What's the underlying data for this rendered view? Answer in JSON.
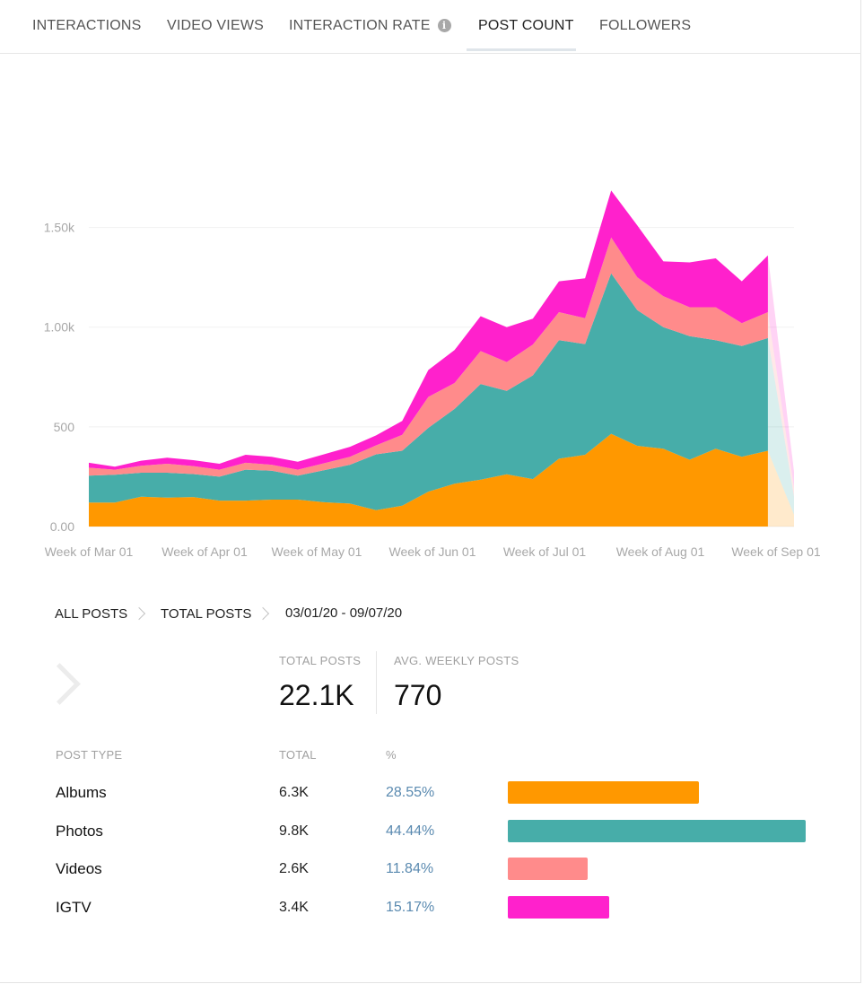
{
  "tabs": [
    {
      "label": "INTERACTIONS",
      "active": false
    },
    {
      "label": "VIDEO VIEWS",
      "active": false
    },
    {
      "label": "INTERACTION RATE",
      "active": false,
      "info_icon": "info-icon"
    },
    {
      "label": "POST COUNT",
      "active": true
    },
    {
      "label": "FOLLOWERS",
      "active": false
    }
  ],
  "chart_data": {
    "type": "area",
    "stacked": true,
    "x_tick_labels": [
      "Week of Mar 01",
      "Week of Apr 01",
      "Week of May 01",
      "Week of Jun 01",
      "Week of Jul 01",
      "Week of Aug 01",
      "Week of Sep 01"
    ],
    "y_tick_labels": [
      "0.00",
      "500",
      "1.00k",
      "1.50k"
    ],
    "ylim": [
      0,
      1750
    ],
    "y_ticks": [
      0,
      500,
      1000,
      1500
    ],
    "grid": true,
    "legend": "none",
    "last_point_partial": true,
    "series": [
      {
        "key": "albums",
        "color": "#ff9800",
        "values": [
          120,
          120,
          150,
          145,
          148,
          130,
          130,
          135,
          135,
          122,
          115,
          82,
          105,
          175,
          215,
          235,
          262,
          238,
          340,
          360,
          465,
          405,
          390,
          335,
          390,
          350,
          380,
          60
        ]
      },
      {
        "key": "photos",
        "color": "#47ada9",
        "values": [
          135,
          140,
          120,
          125,
          115,
          120,
          155,
          145,
          120,
          160,
          195,
          280,
          275,
          320,
          375,
          480,
          418,
          520,
          595,
          555,
          805,
          680,
          610,
          620,
          545,
          555,
          565,
          90
        ]
      },
      {
        "key": "videos",
        "color": "#ff8b8b",
        "values": [
          40,
          25,
          35,
          45,
          40,
          35,
          35,
          30,
          30,
          35,
          40,
          45,
          80,
          155,
          130,
          165,
          145,
          155,
          140,
          130,
          180,
          165,
          155,
          145,
          165,
          115,
          130,
          45
        ]
      },
      {
        "key": "igtv",
        "color": "#ff21cc",
        "values": [
          25,
          15,
          25,
          30,
          30,
          30,
          40,
          40,
          40,
          45,
          50,
          50,
          70,
          135,
          165,
          175,
          175,
          130,
          155,
          200,
          235,
          260,
          175,
          225,
          245,
          210,
          285,
          80
        ]
      }
    ]
  },
  "breadcrumb": {
    "items": [
      "ALL POSTS",
      "TOTAL POSTS"
    ],
    "date_range": "03/01/20 - 09/07/20"
  },
  "stats": {
    "total_posts_label": "TOTAL POSTS",
    "total_posts_value": "22.1K",
    "avg_weekly_label": "AVG. WEEKLY POSTS",
    "avg_weekly_value": "770"
  },
  "table": {
    "headers": {
      "type": "POST TYPE",
      "total": "TOTAL",
      "pct": "%"
    },
    "rows": [
      {
        "type": "Albums",
        "total": "6.3K",
        "pct": "28.55%",
        "share": 28.55,
        "color": "#ff9800"
      },
      {
        "type": "Photos",
        "total": "9.8K",
        "pct": "44.44%",
        "share": 44.44,
        "color": "#47ada9"
      },
      {
        "type": "Videos",
        "total": "2.6K",
        "pct": "11.84%",
        "share": 11.84,
        "color": "#ff8b8b"
      },
      {
        "type": "IGTV",
        "total": "3.4K",
        "pct": "15.17%",
        "share": 15.17,
        "color": "#ff21cc"
      }
    ]
  }
}
